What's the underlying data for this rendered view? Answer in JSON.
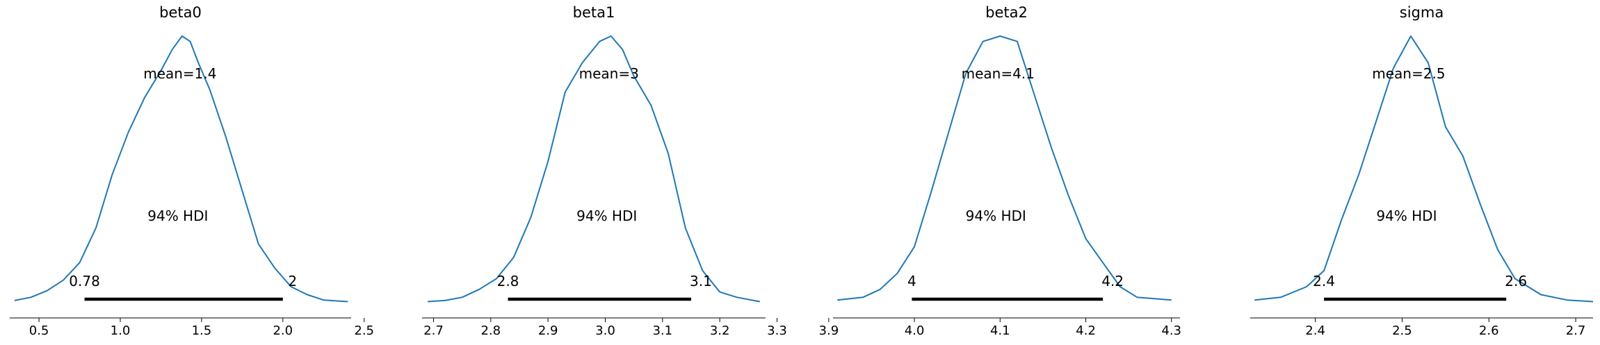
{
  "chart_data": [
    {
      "type": "density",
      "title": "beta0",
      "mean_label": "mean=1.4",
      "hdi_label": "94% HDI",
      "hdi": [
        0.78,
        2.0
      ],
      "hdi_labels": [
        "0.78",
        "2"
      ],
      "xlim": [
        0.32,
        2.42
      ],
      "xticks": [
        0.5,
        1.0,
        1.5,
        2.0,
        2.5
      ],
      "xtick_labels": [
        "0.5",
        "1.0",
        "1.5",
        "2.0",
        "2.5"
      ],
      "x": [
        0.35,
        0.45,
        0.55,
        0.65,
        0.75,
        0.85,
        0.95,
        1.05,
        1.15,
        1.25,
        1.32,
        1.38,
        1.43,
        1.48,
        1.55,
        1.65,
        1.75,
        1.85,
        1.95,
        2.05,
        2.15,
        2.25,
        2.4
      ],
      "y": [
        0.008,
        0.02,
        0.045,
        0.085,
        0.15,
        0.28,
        0.48,
        0.64,
        0.77,
        0.87,
        0.95,
        1.0,
        0.98,
        0.9,
        0.8,
        0.62,
        0.42,
        0.22,
        0.13,
        0.06,
        0.03,
        0.01,
        0.004
      ]
    },
    {
      "type": "density",
      "title": "beta1",
      "mean_label": "mean=3",
      "hdi_label": "94% HDI",
      "hdi": [
        2.83,
        3.15
      ],
      "hdi_labels": [
        "2.8",
        "3.1"
      ],
      "xlim": [
        2.68,
        3.28
      ],
      "xticks": [
        2.7,
        2.8,
        2.9,
        3.0,
        3.1,
        3.2,
        3.3
      ],
      "xtick_labels": [
        "2.7",
        "2.8",
        "2.9",
        "3.0",
        "3.1",
        "3.2",
        "3.3"
      ],
      "x": [
        2.69,
        2.72,
        2.75,
        2.78,
        2.81,
        2.84,
        2.87,
        2.9,
        2.93,
        2.96,
        2.99,
        3.01,
        3.03,
        3.05,
        3.08,
        3.11,
        3.14,
        3.17,
        3.2,
        3.23,
        3.27
      ],
      "y": [
        0.004,
        0.008,
        0.02,
        0.05,
        0.09,
        0.17,
        0.32,
        0.53,
        0.79,
        0.9,
        0.98,
        1.0,
        0.95,
        0.85,
        0.74,
        0.56,
        0.28,
        0.12,
        0.04,
        0.02,
        0.004
      ]
    },
    {
      "type": "density",
      "title": "beta2",
      "mean_label": "mean=4.1",
      "hdi_label": "94% HDI",
      "hdi": [
        3.997,
        4.22
      ],
      "hdi_labels": [
        "4",
        "4.2"
      ],
      "xlim": [
        3.905,
        4.31
      ],
      "xticks": [
        3.9,
        4.0,
        4.1,
        4.2,
        4.3
      ],
      "xtick_labels": [
        "3.9",
        "4.0",
        "4.1",
        "4.2",
        "4.3"
      ],
      "x": [
        3.91,
        3.94,
        3.96,
        3.98,
        4.0,
        4.02,
        4.04,
        4.06,
        4.08,
        4.1,
        4.12,
        4.14,
        4.16,
        4.18,
        4.2,
        4.22,
        4.24,
        4.26,
        4.3
      ],
      "y": [
        0.01,
        0.02,
        0.05,
        0.11,
        0.21,
        0.42,
        0.64,
        0.86,
        0.98,
        1.0,
        0.98,
        0.78,
        0.58,
        0.4,
        0.24,
        0.15,
        0.06,
        0.02,
        0.01
      ]
    },
    {
      "type": "density",
      "title": "sigma",
      "mean_label": "mean=2.5",
      "hdi_label": "94% HDI",
      "hdi": [
        2.41,
        2.62
      ],
      "hdi_labels": [
        "2.4",
        "2.6"
      ],
      "xlim": [
        2.325,
        2.72
      ],
      "xticks": [
        2.4,
        2.5,
        2.6,
        2.7
      ],
      "xtick_labels": [
        "2.4",
        "2.5",
        "2.6",
        "2.7"
      ],
      "x": [
        2.33,
        2.36,
        2.39,
        2.41,
        2.43,
        2.45,
        2.47,
        2.49,
        2.51,
        2.53,
        2.55,
        2.57,
        2.59,
        2.61,
        2.63,
        2.66,
        2.69,
        2.72
      ],
      "y": [
        0.01,
        0.02,
        0.06,
        0.12,
        0.31,
        0.48,
        0.68,
        0.88,
        1.0,
        0.9,
        0.66,
        0.55,
        0.37,
        0.2,
        0.09,
        0.03,
        0.01,
        0.004
      ]
    }
  ]
}
